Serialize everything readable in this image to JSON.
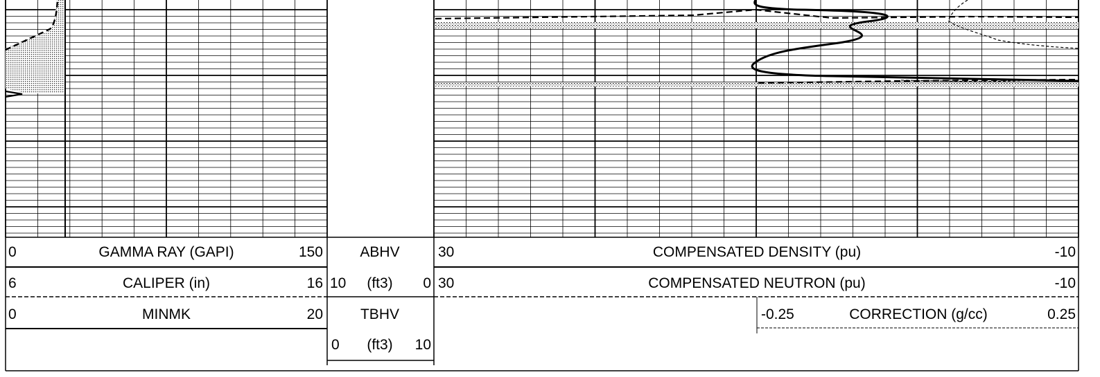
{
  "chart_data": [
    {
      "type": "line",
      "track": "left",
      "grid": true,
      "series": [
        {
          "name": "GAMMA RAY (GAPI)",
          "scale": [
            0,
            150
          ],
          "line_style": "solid",
          "values": []
        },
        {
          "name": "CALIPER (in)",
          "scale": [
            6,
            16
          ],
          "line_style": "dashed",
          "values": []
        },
        {
          "name": "MINMK",
          "scale": [
            0,
            20
          ],
          "line_style": "solid",
          "values": []
        }
      ],
      "shading": "dotted fill between caliper curve and track edge"
    },
    {
      "type": "line",
      "track": "depth",
      "series": [
        {
          "name": "ABHV",
          "scale": [
            10,
            0
          ],
          "unit": "(ft3)"
        },
        {
          "name": "TBHV",
          "scale": [
            0,
            10
          ],
          "unit": "(ft3)"
        }
      ]
    },
    {
      "type": "line",
      "track": "right",
      "grid": true,
      "series": [
        {
          "name": "COMPENSATED DENSITY (pu)",
          "scale": [
            30,
            -10
          ],
          "line_style": "solid"
        },
        {
          "name": "COMPENSATED NEUTRON (pu)",
          "scale": [
            30,
            -10
          ],
          "line_style": "dashed"
        },
        {
          "name": "CORRECTION (g/cc)",
          "scale": [
            -0.25,
            0.25
          ],
          "line_style": "dashed-thin"
        }
      ],
      "shading": "dotted bands near top and middle of track"
    }
  ],
  "header": {
    "rows": [
      {
        "left": {
          "min": "0",
          "label": "GAMMA RAY (GAPI)",
          "max": "150"
        },
        "mid": {
          "label": "ABHV"
        },
        "right": {
          "min": "30",
          "label": "COMPENSATED DENSITY (pu)",
          "max": "-10"
        }
      },
      {
        "left": {
          "min": "6",
          "label": "CALIPER (in)",
          "max": "16"
        },
        "mid": {
          "min": "10",
          "label": "(ft3)",
          "max": "0"
        },
        "right": {
          "min": "30",
          "label": "COMPENSATED NEUTRON (pu)",
          "max": "-10"
        }
      },
      {
        "left": {
          "min": "0",
          "label": "MINMK",
          "max": "20"
        },
        "mid": {
          "label": "TBHV"
        },
        "right": {
          "min": "-0.25",
          "label": "CORRECTION (g/cc)",
          "max": "0.25"
        }
      },
      {
        "mid": {
          "min": "0",
          "label": "(ft3)",
          "max": "10"
        }
      }
    ]
  }
}
